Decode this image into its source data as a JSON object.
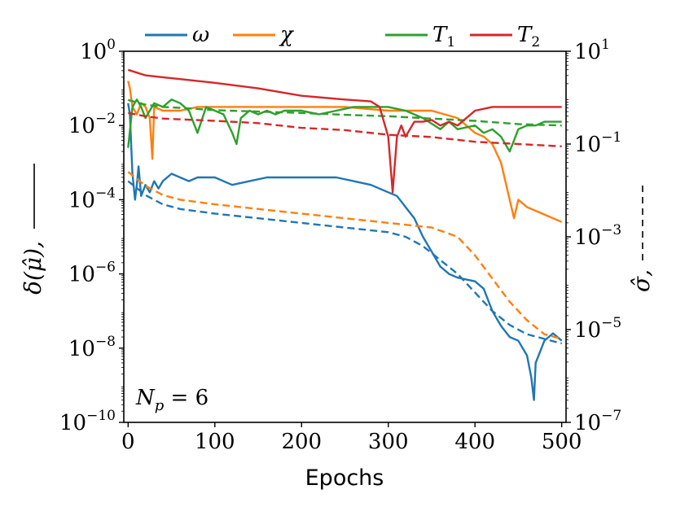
{
  "chart_data": {
    "type": "line",
    "title": "",
    "xlabel": "Epochs",
    "ylabel_left": "δ(μ̂),",
    "ylabel_right": "σ̂,",
    "xlim": [
      -5,
      505
    ],
    "ylim_left_log10": [
      -10,
      0
    ],
    "ylim_right_log10": [
      -7,
      1
    ],
    "x_ticks": [
      0,
      100,
      200,
      300,
      400,
      500
    ],
    "x_tick_labels": [
      "0",
      "100",
      "200",
      "300",
      "400",
      "500"
    ],
    "left_ticks": [
      {
        "exp": 0,
        "base": "10",
        "sup": "0"
      },
      {
        "exp": -2,
        "base": "10",
        "sup": "−2"
      },
      {
        "exp": -4,
        "base": "10",
        "sup": "−4"
      },
      {
        "exp": -6,
        "base": "10",
        "sup": "−6"
      },
      {
        "exp": -8,
        "base": "10",
        "sup": "−8"
      },
      {
        "exp": -10,
        "base": "10",
        "sup": "−10"
      }
    ],
    "right_ticks": [
      {
        "exp": 1,
        "base": "10",
        "sup": "1"
      },
      {
        "exp": -1,
        "base": "10",
        "sup": "−1"
      },
      {
        "exp": -3,
        "base": "10",
        "sup": "−3"
      },
      {
        "exp": -5,
        "base": "10",
        "sup": "−5"
      },
      {
        "exp": -7,
        "base": "10",
        "sup": "−7"
      }
    ],
    "legend_position": "top",
    "annotation": {
      "text": "N",
      "sub": "p",
      "rest": " = 6"
    },
    "series": [
      {
        "name": "ω",
        "color": "#1f77b4",
        "solid_delta_log10": [
          [
            0,
            -1.4
          ],
          [
            2,
            -1.7
          ],
          [
            5,
            -3.3
          ],
          [
            8,
            -4.0
          ],
          [
            10,
            -3.6
          ],
          [
            12,
            -3.1
          ],
          [
            15,
            -3.9
          ],
          [
            20,
            -3.6
          ],
          [
            25,
            -3.8
          ],
          [
            30,
            -3.5
          ],
          [
            35,
            -3.7
          ],
          [
            40,
            -3.5
          ],
          [
            50,
            -3.3
          ],
          [
            60,
            -3.4
          ],
          [
            70,
            -3.5
          ],
          [
            80,
            -3.4
          ],
          [
            100,
            -3.4
          ],
          [
            120,
            -3.6
          ],
          [
            140,
            -3.5
          ],
          [
            160,
            -3.4
          ],
          [
            200,
            -3.4
          ],
          [
            240,
            -3.4
          ],
          [
            260,
            -3.5
          ],
          [
            280,
            -3.6
          ],
          [
            300,
            -3.8
          ],
          [
            310,
            -3.9
          ],
          [
            320,
            -4.2
          ],
          [
            330,
            -4.5
          ],
          [
            340,
            -5.0
          ],
          [
            350,
            -5.4
          ],
          [
            360,
            -5.8
          ],
          [
            370,
            -6.0
          ],
          [
            380,
            -6.1
          ],
          [
            400,
            -6.2
          ],
          [
            410,
            -6.4
          ],
          [
            420,
            -7.0
          ],
          [
            430,
            -7.4
          ],
          [
            440,
            -7.7
          ],
          [
            450,
            -7.8
          ],
          [
            460,
            -8.2
          ],
          [
            465,
            -8.8
          ],
          [
            468,
            -9.4
          ],
          [
            470,
            -8.4
          ],
          [
            480,
            -7.8
          ],
          [
            490,
            -7.6
          ],
          [
            500,
            -7.8
          ]
        ],
        "dashed_sigma_log10": [
          [
            0,
            -1.8
          ],
          [
            20,
            -2.1
          ],
          [
            40,
            -2.3
          ],
          [
            60,
            -2.4
          ],
          [
            100,
            -2.5
          ],
          [
            150,
            -2.6
          ],
          [
            200,
            -2.7
          ],
          [
            250,
            -2.8
          ],
          [
            300,
            -2.9
          ],
          [
            320,
            -3.0
          ],
          [
            340,
            -3.2
          ],
          [
            360,
            -3.5
          ],
          [
            380,
            -3.8
          ],
          [
            400,
            -4.2
          ],
          [
            420,
            -4.6
          ],
          [
            440,
            -4.9
          ],
          [
            460,
            -5.1
          ],
          [
            480,
            -5.2
          ],
          [
            500,
            -5.3
          ]
        ]
      },
      {
        "name": "χ",
        "color": "#ff7f0e",
        "solid_delta_log10": [
          [
            0,
            -0.8
          ],
          [
            2,
            -1.0
          ],
          [
            5,
            -1.5
          ],
          [
            10,
            -1.7
          ],
          [
            15,
            -1.4
          ],
          [
            20,
            -1.5
          ],
          [
            25,
            -1.8
          ],
          [
            28,
            -2.9
          ],
          [
            30,
            -1.5
          ],
          [
            40,
            -1.6
          ],
          [
            60,
            -1.6
          ],
          [
            80,
            -1.5
          ],
          [
            100,
            -1.5
          ],
          [
            150,
            -1.5
          ],
          [
            200,
            -1.5
          ],
          [
            250,
            -1.5
          ],
          [
            300,
            -1.6
          ],
          [
            350,
            -1.6
          ],
          [
            380,
            -1.8
          ],
          [
            400,
            -2.2
          ],
          [
            410,
            -2.3
          ],
          [
            420,
            -2.5
          ],
          [
            430,
            -3.0
          ],
          [
            440,
            -4.0
          ],
          [
            445,
            -4.5
          ],
          [
            450,
            -4.0
          ],
          [
            460,
            -4.2
          ],
          [
            480,
            -4.4
          ],
          [
            500,
            -4.6
          ]
        ],
        "dashed_sigma_log10": [
          [
            0,
            -1.6
          ],
          [
            20,
            -1.9
          ],
          [
            40,
            -2.1
          ],
          [
            60,
            -2.2
          ],
          [
            100,
            -2.3
          ],
          [
            150,
            -2.4
          ],
          [
            200,
            -2.5
          ],
          [
            250,
            -2.6
          ],
          [
            300,
            -2.7
          ],
          [
            350,
            -2.8
          ],
          [
            380,
            -3.0
          ],
          [
            400,
            -3.4
          ],
          [
            420,
            -3.9
          ],
          [
            440,
            -4.4
          ],
          [
            460,
            -4.8
          ],
          [
            480,
            -5.1
          ],
          [
            500,
            -5.2
          ]
        ]
      },
      {
        "name": "T",
        "sub": "1",
        "color": "#2ca02c",
        "solid_delta_log10": [
          [
            0,
            -2.6
          ],
          [
            5,
            -1.5
          ],
          [
            10,
            -1.3
          ],
          [
            15,
            -1.5
          ],
          [
            20,
            -1.8
          ],
          [
            30,
            -1.4
          ],
          [
            40,
            -1.5
          ],
          [
            50,
            -1.3
          ],
          [
            60,
            -1.4
          ],
          [
            70,
            -1.6
          ],
          [
            80,
            -2.2
          ],
          [
            90,
            -1.5
          ],
          [
            100,
            -1.6
          ],
          [
            110,
            -1.7
          ],
          [
            120,
            -2.2
          ],
          [
            125,
            -2.5
          ],
          [
            130,
            -1.8
          ],
          [
            140,
            -1.6
          ],
          [
            150,
            -1.7
          ],
          [
            160,
            -1.6
          ],
          [
            170,
            -1.7
          ],
          [
            180,
            -1.6
          ],
          [
            200,
            -1.6
          ],
          [
            220,
            -1.7
          ],
          [
            240,
            -1.6
          ],
          [
            260,
            -1.5
          ],
          [
            280,
            -1.5
          ],
          [
            300,
            -1.5
          ],
          [
            320,
            -1.6
          ],
          [
            340,
            -1.8
          ],
          [
            360,
            -2.1
          ],
          [
            370,
            -1.9
          ],
          [
            380,
            -2.1
          ],
          [
            400,
            -2.0
          ],
          [
            410,
            -2.2
          ],
          [
            420,
            -2.1
          ],
          [
            430,
            -2.3
          ],
          [
            440,
            -2.7
          ],
          [
            450,
            -2.1
          ],
          [
            460,
            -2.0
          ],
          [
            470,
            -2.0
          ],
          [
            480,
            -1.9
          ],
          [
            500,
            -1.9
          ]
        ],
        "dashed_sigma_log10": [
          [
            0,
            -0.05
          ],
          [
            20,
            -0.15
          ],
          [
            40,
            -0.2
          ],
          [
            60,
            -0.22
          ],
          [
            100,
            -0.27
          ],
          [
            150,
            -0.3
          ],
          [
            200,
            -0.33
          ],
          [
            250,
            -0.37
          ],
          [
            300,
            -0.4
          ],
          [
            350,
            -0.45
          ],
          [
            400,
            -0.5
          ],
          [
            450,
            -0.57
          ],
          [
            500,
            -0.6
          ]
        ]
      },
      {
        "name": "T",
        "sub": "2",
        "color": "#d62728",
        "solid_delta_log10": [
          [
            0,
            -0.5
          ],
          [
            20,
            -0.65
          ],
          [
            40,
            -0.7
          ],
          [
            60,
            -0.75
          ],
          [
            100,
            -0.85
          ],
          [
            150,
            -1.0
          ],
          [
            200,
            -1.2
          ],
          [
            250,
            -1.3
          ],
          [
            280,
            -1.35
          ],
          [
            290,
            -1.5
          ],
          [
            300,
            -2.3
          ],
          [
            305,
            -3.8
          ],
          [
            310,
            -2.3
          ],
          [
            315,
            -2.0
          ],
          [
            320,
            -2.3
          ],
          [
            330,
            -1.9
          ],
          [
            340,
            -1.9
          ],
          [
            350,
            -1.85
          ],
          [
            360,
            -2.0
          ],
          [
            370,
            -1.9
          ],
          [
            380,
            -2.0
          ],
          [
            390,
            -1.8
          ],
          [
            400,
            -1.6
          ],
          [
            420,
            -1.5
          ],
          [
            450,
            -1.5
          ],
          [
            500,
            -1.5
          ]
        ],
        "dashed_sigma_log10": [
          [
            0,
            -0.33
          ],
          [
            20,
            -0.4
          ],
          [
            40,
            -0.45
          ],
          [
            100,
            -0.5
          ],
          [
            150,
            -0.55
          ],
          [
            200,
            -0.65
          ],
          [
            250,
            -0.7
          ],
          [
            300,
            -0.8
          ],
          [
            350,
            -0.85
          ],
          [
            400,
            -0.95
          ],
          [
            450,
            -1.0
          ],
          [
            500,
            -1.05
          ]
        ]
      }
    ]
  }
}
